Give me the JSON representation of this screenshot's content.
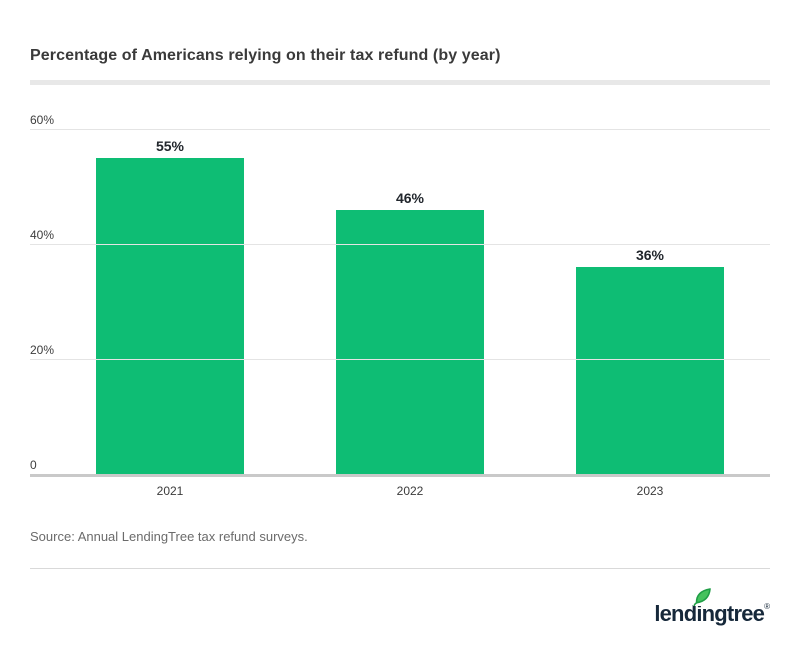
{
  "header": {
    "title": "Percentage of Americans relying on their tax refund (by year)"
  },
  "chart_data": {
    "type": "bar",
    "categories": [
      "2021",
      "2022",
      "2023"
    ],
    "values": [
      55,
      46,
      36
    ],
    "value_labels": [
      "55%",
      "46%",
      "36%"
    ],
    "title": "Percentage of Americans relying on their tax refund (by year)",
    "xlabel": "",
    "ylabel": "",
    "ylim": [
      0,
      60
    ],
    "yticks": [
      {
        "value": 60,
        "label": "60%"
      },
      {
        "value": 40,
        "label": "40%"
      },
      {
        "value": 20,
        "label": "20%"
      },
      {
        "value": 0,
        "label": "0"
      }
    ],
    "grid": true,
    "legend": false,
    "bar_color": "#0ebd74"
  },
  "footer": {
    "source": "Source: Annual LendingTree tax refund surveys.",
    "logo_text": "lendingtree",
    "logo_registered": "®"
  },
  "colors": {
    "bar_green": "#0ebd74",
    "logo_navy": "#16283a",
    "leaf_green": "#2fb457",
    "gridline": "#e4e4e4",
    "baseline": "#c9c9c9"
  }
}
